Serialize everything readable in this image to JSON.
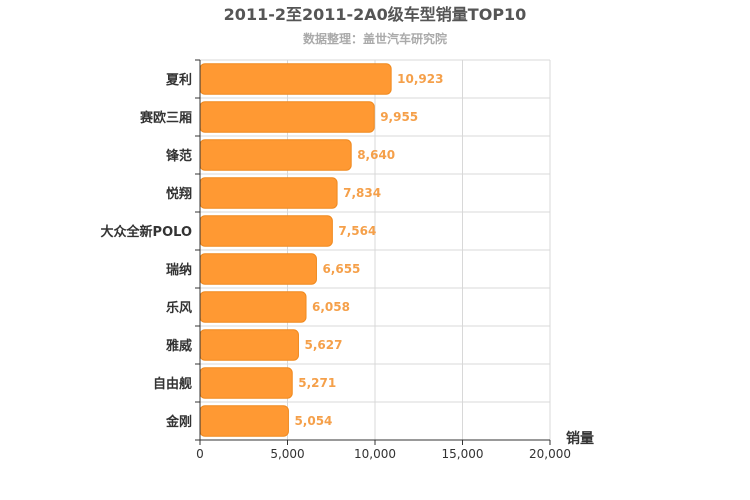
{
  "chart_data": {
    "type": "bar",
    "orientation": "horizontal",
    "title": "2011-2至2011-2A0级车型销量TOP10",
    "subtitle": "数据整理：盖世汽车研究院",
    "xlabel": "销量",
    "ylabel": "",
    "categories": [
      "夏利",
      "赛欧三厢",
      "锋范",
      "悦翔",
      "大众全新POLO",
      "瑞纳",
      "乐风",
      "雅威",
      "自由舰",
      "金刚"
    ],
    "values": [
      10923,
      9955,
      8640,
      7834,
      7564,
      6655,
      6058,
      5627,
      5271,
      5054
    ],
    "data_labels": [
      "10,923",
      "9,955",
      "8,640",
      "7,834",
      "7,564",
      "6,655",
      "6,058",
      "5,627",
      "5,271",
      "5,054"
    ],
    "xlim": [
      0,
      20000
    ],
    "xticks": [
      0,
      5000,
      10000,
      15000,
      20000
    ],
    "xtick_labels": [
      "0",
      "5,000",
      "10,000",
      "15,000",
      "20,000"
    ],
    "grid": true,
    "legend": "none"
  },
  "colors": {
    "bar": "#ff9933",
    "bar_border": "#f08a1f",
    "data_label": "#f5a04a",
    "grid": "#d8d8d8",
    "axis": "#333333"
  }
}
